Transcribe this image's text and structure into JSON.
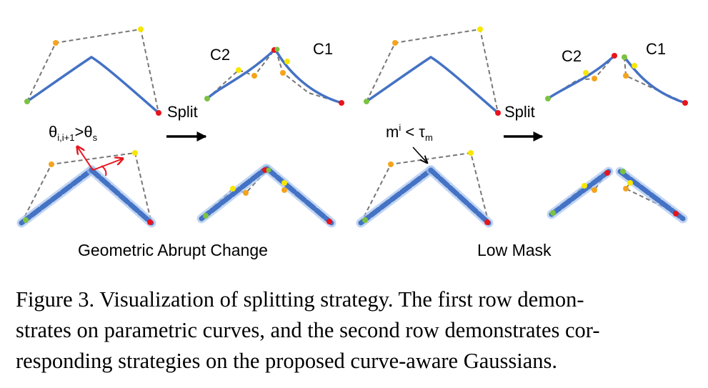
{
  "labels": {
    "split": "Split",
    "c1": "C1",
    "c2": "C2",
    "geometric": "Geometric Abrupt Change",
    "lowmask": "Low Mask",
    "theta_cond_main": "θ",
    "theta_cond_sub1": "i,i+1",
    "theta_cond_mid": ">θ",
    "theta_cond_sub2": "s",
    "mask_cond_main": "m",
    "mask_cond_sup": "i",
    "mask_cond_mid": " < τ",
    "mask_cond_sub": "m"
  },
  "caption": [
    "Figure 3. Visualization of splitting strategy. The first row demon-",
    "strates on parametric curves, and the second row demonstrates cor-",
    "responding strategies on the proposed curve-aware Gaussians."
  ],
  "colors": {
    "curve": "#4472c4",
    "dash": "#777777",
    "yellow": "#f7e600",
    "orange": "#f4a41c",
    "green": "#7cc242",
    "red": "#e8141b",
    "arrow_red": "#e8141b"
  }
}
